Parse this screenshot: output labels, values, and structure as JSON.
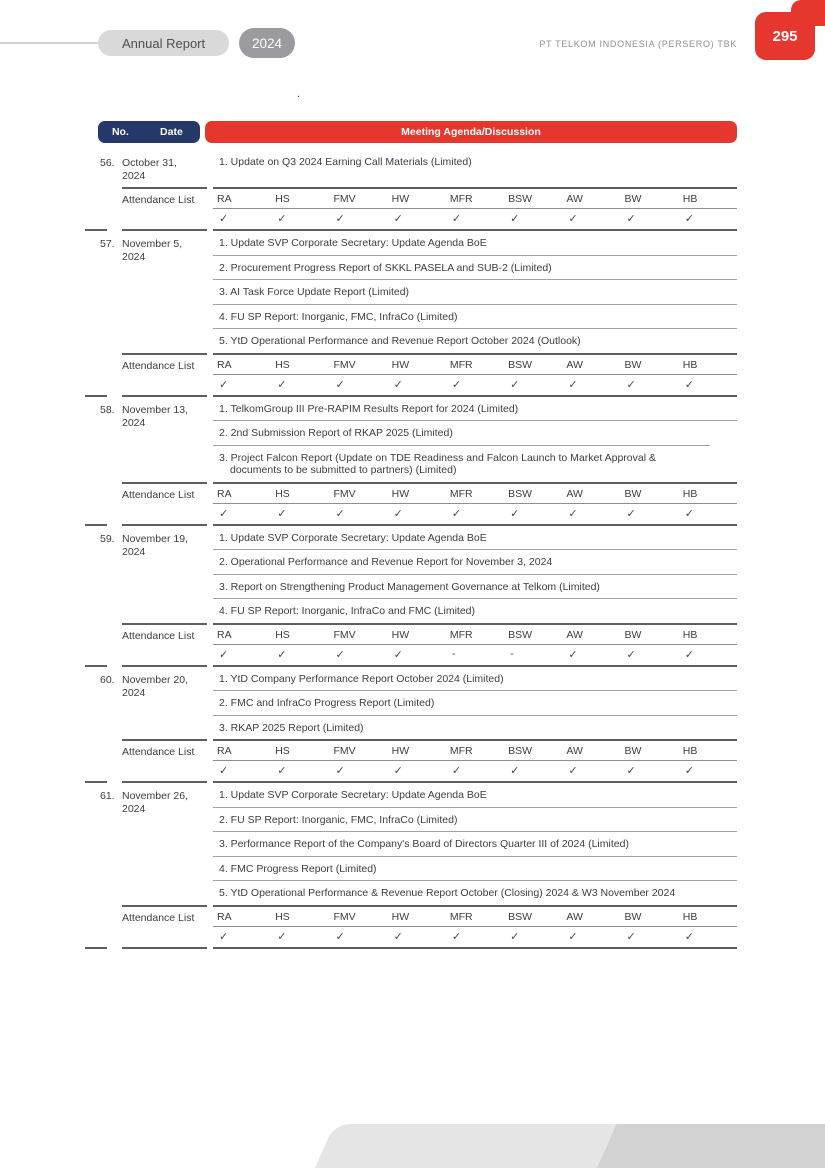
{
  "header": {
    "report_label": "Annual Report",
    "year": "2024",
    "company": "PT TELKOM INDONESIA (PERSERO) TBK",
    "page_number": "295"
  },
  "stray_mark": ".",
  "colors": {
    "header_navy": "#24386a",
    "header_red": "#e6372e",
    "page_badge_red": "#e6372e",
    "pill_light_gray": "#d9d9da",
    "pill_dark_gray": "#9b9b9f",
    "footer_light_gray": "#e5e5e6",
    "footer_dark_gray": "#d2d2d3"
  },
  "table": {
    "columns": {
      "no": "No.",
      "date": "Date",
      "agenda": "Meeting Agenda/Discussion"
    },
    "attendance_label": "Attendance List",
    "attendance_columns": [
      "RA",
      "HS",
      "FMV",
      "HW",
      "MFR",
      "BSW",
      "AW",
      "BW",
      "HB"
    ],
    "check": "✓",
    "rows": [
      {
        "no": "56.",
        "date": "October 31, 2024",
        "agenda": [
          "1. Update on Q3 2024 Earning Call Materials (Limited)"
        ],
        "attendance": [
          "✓",
          "✓",
          "✓",
          "✓",
          "✓",
          "✓",
          "✓",
          "✓",
          "✓"
        ]
      },
      {
        "no": "57.",
        "date": "November 5, 2024",
        "agenda": [
          "1. Update SVP Corporate Secretary: Update Agenda BoE",
          "2. Procurement Progress Report of SKKL PASELA and SUB-2 (Limited)",
          "3. AI Task Force Update Report (Limited)",
          "4. FU SP Report: Inorganic, FMC, InfraCo (Limited)",
          "5. YtD Operational Performance and Revenue Report October 2024 (Outlook)"
        ],
        "attendance": [
          "✓",
          "✓",
          "✓",
          "✓",
          "✓",
          "✓",
          "✓",
          "✓",
          "✓"
        ]
      },
      {
        "no": "58.",
        "date": "November 13, 2024",
        "agenda": [
          "1. TelkomGroup III Pre-RAPIM Results Report for 2024 (Limited)",
          "2. 2nd Submission Report of RKAP 2025 (Limited)",
          "3. Project Falcon Report (Update on TDE Readiness and Falcon Launch to Market Approval & documents to be submitted to partners) (Limited)"
        ],
        "attendance": [
          "✓",
          "✓",
          "✓",
          "✓",
          "✓",
          "✓",
          "✓",
          "✓",
          "✓"
        ]
      },
      {
        "no": "59.",
        "date": "November 19, 2024",
        "agenda": [
          "1. Update SVP Corporate Secretary: Update Agenda BoE",
          "2. Operational Performance and Revenue Report for November 3, 2024",
          "3. Report on Strengthening Product Management Governance at Telkom (Limited)",
          "4. FU SP Report: Inorganic, InfraCo and FMC (Limited)"
        ],
        "attendance": [
          "✓",
          "✓",
          "✓",
          "✓",
          "-",
          "-",
          "✓",
          "✓",
          "✓"
        ]
      },
      {
        "no": "60.",
        "date": "November 20, 2024",
        "agenda": [
          "1. YtD Company Performance Report October 2024 (Limited)",
          "2. FMC and InfraCo Progress Report (Limited)",
          "3. RKAP 2025 Report (Limited)"
        ],
        "attendance": [
          "✓",
          "✓",
          "✓",
          "✓",
          "✓",
          "✓",
          "✓",
          "✓",
          "✓"
        ]
      },
      {
        "no": "61.",
        "date": "November 26, 2024",
        "agenda": [
          "1. Update SVP Corporate Secretary: Update Agenda BoE",
          "2. FU SP Report: Inorganic, FMC, InfraCo (Limited)",
          "3. Performance Report of the Company's Board of Directors Quarter III of 2024 (Limited)",
          "4. FMC Progress Report (Limited)",
          "5. YtD Operational Performance & Revenue Report October (Closing) 2024 & W3 November 2024"
        ],
        "attendance": [
          "✓",
          "✓",
          "✓",
          "✓",
          "✓",
          "✓",
          "✓",
          "✓",
          "✓"
        ]
      }
    ]
  }
}
